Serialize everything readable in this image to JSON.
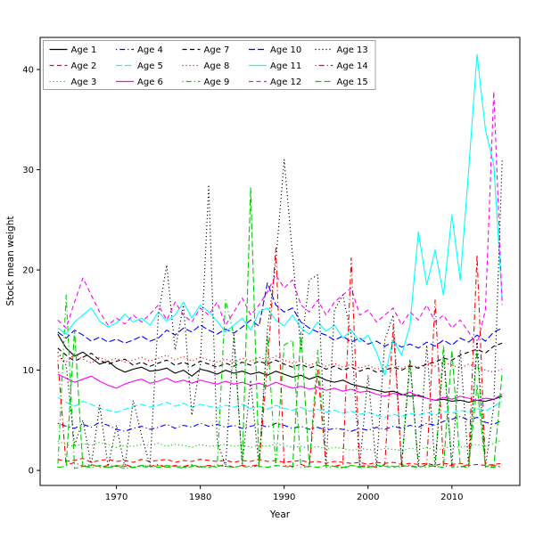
{
  "chart_data": {
    "type": "line",
    "title": "",
    "xlabel": "Year",
    "ylabel": "Stock mean weight",
    "xlim": [
      1960.9,
      2018.1
    ],
    "ylim": [
      -1.5,
      43.2
    ],
    "xticks": [
      1970,
      1980,
      1990,
      2000,
      2010
    ],
    "yticks": [
      0,
      10,
      20,
      30,
      40
    ],
    "grid": false,
    "legend_position": "top-left-inside",
    "legend_columns": 5,
    "legend_rows": 3,
    "frame_color": "#000000",
    "legend_border_color": "#a0a0a0",
    "x": [
      1963,
      1964,
      1965,
      1966,
      1967,
      1968,
      1969,
      1970,
      1971,
      1972,
      1973,
      1974,
      1975,
      1976,
      1977,
      1978,
      1979,
      1980,
      1981,
      1982,
      1983,
      1984,
      1985,
      1986,
      1987,
      1988,
      1989,
      1990,
      1991,
      1992,
      1993,
      1994,
      1995,
      1996,
      1997,
      1998,
      1999,
      2000,
      2001,
      2002,
      2003,
      2004,
      2005,
      2006,
      2007,
      2008,
      2009,
      2010,
      2011,
      2012,
      2013,
      2014,
      2015,
      2016
    ],
    "series": [
      {
        "name": "Age 1",
        "color": "#000000",
        "dash": "solid",
        "values": [
          13.6,
          12.2,
          11.4,
          11.8,
          11.2,
          10.6,
          10.9,
          10.2,
          9.8,
          10.1,
          10.3,
          9.9,
          10.0,
          10.2,
          9.7,
          10.0,
          9.4,
          10.1,
          9.9,
          9.6,
          10.0,
          9.7,
          9.9,
          9.6,
          9.8,
          9.5,
          9.9,
          9.6,
          9.3,
          9.5,
          9.1,
          9.4,
          9.0,
          8.8,
          9.0,
          8.6,
          8.4,
          8.2,
          8.0,
          7.8,
          7.9,
          7.6,
          7.4,
          7.5,
          7.2,
          7.0,
          7.1,
          6.9,
          7.0,
          6.8,
          7.0,
          6.9,
          7.1,
          7.4
        ]
      },
      {
        "name": "Age 2",
        "color": "#ff0000",
        "dash": "dashed",
        "values": [
          1.1,
          0.9,
          1.0,
          1.2,
          0.8,
          1.0,
          1.1,
          0.9,
          1.0,
          0.8,
          1.1,
          0.9,
          1.0,
          1.1,
          0.8,
          1.0,
          0.9,
          1.1,
          1.0,
          0.9,
          1.0,
          0.8,
          1.0,
          0.9,
          1.1,
          0.9,
          1.0,
          0.8,
          0.9,
          1.0,
          0.8,
          0.9,
          0.7,
          0.9,
          0.8,
          0.7,
          0.8,
          0.6,
          0.8,
          0.7,
          0.8,
          0.6,
          0.7,
          0.6,
          0.7,
          0.5,
          0.7,
          0.6,
          0.7,
          0.5,
          0.6,
          0.5,
          0.6,
          0.7
        ]
      },
      {
        "name": "Age 3",
        "color": "#00cd00",
        "dash": "dotted",
        "values": [
          2.9,
          2.6,
          2.4,
          2.7,
          2.5,
          2.8,
          2.6,
          2.3,
          2.5,
          2.4,
          2.6,
          2.5,
          2.7,
          2.4,
          2.6,
          2.5,
          2.3,
          2.6,
          2.4,
          2.5,
          2.6,
          2.4,
          2.5,
          2.3,
          2.5,
          2.4,
          2.6,
          2.5,
          2.3,
          2.4,
          2.2,
          2.4,
          2.1,
          2.3,
          2.2,
          2.0,
          2.2,
          2.1,
          2.0,
          2.2,
          2.1,
          2.0,
          2.2,
          2.1,
          2.3,
          2.0,
          2.2,
          2.4,
          2.3,
          2.5,
          2.6,
          2.4,
          2.7,
          3.0
        ]
      },
      {
        "name": "Age 4",
        "color": "#0000ff",
        "dash": "dotdash",
        "values": [
          4.7,
          4.4,
          4.2,
          4.6,
          4.3,
          4.8,
          4.5,
          4.1,
          3.9,
          4.2,
          4.4,
          4.1,
          4.3,
          4.6,
          4.2,
          4.5,
          4.3,
          4.7,
          4.4,
          4.6,
          4.3,
          4.5,
          4.2,
          4.4,
          4.6,
          4.3,
          4.7,
          4.5,
          4.2,
          4.4,
          4.1,
          4.3,
          4.0,
          4.2,
          4.1,
          3.9,
          4.2,
          4.0,
          4.3,
          4.1,
          4.4,
          4.2,
          4.5,
          4.3,
          4.7,
          4.5,
          4.9,
          5.1,
          5.4,
          5.0,
          5.3,
          4.8,
          4.6,
          5.0
        ]
      },
      {
        "name": "Age 5",
        "color": "#00ffff",
        "dash": "longdash",
        "values": [
          7.3,
          6.8,
          6.4,
          6.9,
          6.6,
          6.2,
          6.0,
          5.8,
          6.1,
          6.4,
          6.6,
          6.3,
          6.5,
          6.8,
          6.4,
          6.7,
          6.3,
          6.6,
          6.4,
          6.2,
          6.5,
          6.3,
          6.6,
          6.2,
          6.4,
          6.1,
          6.5,
          6.2,
          6.0,
          6.3,
          5.9,
          6.1,
          5.8,
          6.0,
          5.7,
          5.9,
          5.6,
          5.8,
          5.5,
          5.3,
          5.6,
          5.4,
          5.7,
          5.5,
          5.8,
          5.5,
          5.9,
          5.7,
          6.0,
          5.8,
          6.2,
          5.9,
          6.4,
          6.9
        ]
      },
      {
        "name": "Age 6",
        "color": "#ff00ff",
        "dash": "solid",
        "values": [
          9.6,
          9.2,
          8.8,
          9.1,
          9.4,
          8.9,
          8.5,
          8.2,
          8.6,
          8.9,
          9.1,
          8.7,
          8.9,
          9.2,
          8.8,
          9.0,
          8.7,
          9.0,
          8.8,
          8.6,
          8.9,
          8.6,
          8.8,
          8.5,
          8.7,
          8.4,
          8.8,
          8.5,
          8.2,
          8.4,
          8.1,
          8.3,
          8.0,
          8.2,
          7.9,
          8.1,
          7.8,
          7.9,
          7.6,
          7.4,
          7.7,
          7.5,
          7.8,
          7.4,
          7.2,
          7.0,
          7.3,
          7.1,
          7.4,
          7.2,
          7.0,
          7.2,
          7.1,
          7.6
        ]
      },
      {
        "name": "Age 7",
        "color": "#000000",
        "dash": "dashed",
        "values": [
          12.2,
          11.5,
          10.9,
          11.3,
          11.7,
          11.0,
          10.6,
          10.9,
          11.1,
          10.5,
          10.8,
          10.4,
          10.7,
          11.0,
          10.5,
          10.8,
          10.4,
          10.9,
          10.6,
          10.3,
          10.7,
          10.4,
          10.8,
          10.5,
          10.9,
          10.6,
          11.0,
          10.6,
          10.3,
          10.6,
          10.2,
          10.5,
          10.1,
          10.4,
          10.0,
          10.3,
          9.9,
          10.2,
          9.8,
          10.0,
          10.3,
          10.0,
          10.4,
          10.2,
          10.6,
          10.8,
          11.2,
          11.0,
          11.5,
          11.8,
          12.1,
          11.7,
          12.4,
          12.7
        ]
      },
      {
        "name": "Age 8",
        "color": "#ff0000",
        "dash": "dotted",
        "values": [
          11.4,
          10.8,
          11.6,
          11.1,
          10.7,
          11.3,
          10.9,
          11.2,
          10.8,
          11.0,
          11.3,
          10.9,
          11.2,
          11.5,
          11.0,
          11.4,
          10.9,
          11.3,
          11.0,
          10.8,
          11.1,
          10.8,
          11.2,
          10.9,
          11.3,
          11.0,
          11.4,
          11.0,
          10.7,
          10.9,
          10.5,
          10.8,
          10.4,
          10.7,
          10.3,
          10.6,
          10.2,
          10.5,
          10.1,
          10.3,
          10.6,
          10.2,
          10.5,
          10.3,
          10.7,
          10.4,
          10.8,
          10.5,
          10.2,
          10.6,
          10.3,
          10.0,
          9.8,
          10.1
        ]
      },
      {
        "name": "Age 9",
        "color": "#00cd00",
        "dash": "dotdash",
        "values": [
          0.3,
          17.5,
          0.2,
          0.4,
          0.3,
          0.5,
          0.3,
          0.4,
          0.2,
          0.3,
          0.4,
          0.3,
          0.5,
          0.3,
          0.4,
          0.2,
          0.4,
          0.3,
          0.5,
          0.3,
          17.0,
          13.5,
          0.4,
          0.3,
          0.5,
          13.5,
          0.4,
          12.5,
          13.0,
          0.3,
          0.4,
          12.0,
          0.3,
          0.4,
          0.2,
          0.5,
          0.3,
          0.4,
          0.3,
          0.5,
          0.4,
          0.3,
          11.0,
          0.4,
          0.3,
          0.5,
          12.5,
          0.3,
          0.4,
          0.3,
          12.0,
          0.4,
          0.3,
          0.5
        ]
      },
      {
        "name": "Age 10",
        "color": "#0000ff",
        "dash": "longdash",
        "values": [
          13.8,
          13.2,
          14.0,
          13.5,
          12.9,
          13.3,
          12.8,
          13.1,
          12.7,
          13.0,
          13.4,
          12.9,
          13.2,
          14.0,
          13.5,
          14.2,
          13.8,
          14.5,
          14.0,
          13.6,
          14.1,
          13.7,
          14.3,
          15.0,
          14.4,
          18.7,
          16.5,
          15.8,
          16.2,
          14.8,
          14.2,
          13.8,
          13.5,
          13.0,
          13.4,
          12.8,
          13.2,
          12.6,
          12.9,
          12.4,
          12.8,
          12.3,
          12.6,
          12.2,
          12.8,
          12.4,
          13.0,
          12.5,
          13.2,
          12.8,
          13.5,
          12.9,
          13.8,
          14.2
        ]
      },
      {
        "name": "Age 11",
        "color": "#00ffff",
        "dash": "solid",
        "values": [
          14.2,
          13.6,
          14.8,
          15.5,
          16.2,
          14.9,
          14.3,
          14.7,
          15.6,
          14.8,
          15.2,
          14.5,
          15.8,
          14.9,
          15.5,
          16.8,
          15.2,
          16.5,
          15.8,
          14.9,
          13.8,
          14.5,
          15.2,
          14.0,
          15.8,
          16.2,
          15.0,
          14.4,
          15.5,
          14.2,
          13.6,
          14.8,
          13.9,
          14.5,
          13.2,
          14.0,
          12.8,
          13.5,
          11.8,
          9.5,
          13.0,
          11.5,
          14.5,
          23.8,
          18.5,
          22.0,
          17.5,
          25.5,
          19.0,
          30.0,
          41.5,
          34.0,
          30.5,
          17.0
        ]
      },
      {
        "name": "Age 12",
        "color": "#ff00ff",
        "dash": "dashed",
        "values": [
          15.0,
          14.2,
          16.8,
          19.2,
          17.5,
          15.8,
          14.5,
          15.2,
          14.6,
          15.5,
          14.8,
          15.6,
          16.5,
          15.0,
          16.8,
          15.5,
          14.8,
          16.2,
          15.5,
          16.8,
          14.5,
          15.8,
          17.2,
          15.5,
          16.5,
          17.8,
          19.5,
          18.2,
          19.0,
          16.5,
          15.8,
          17.0,
          15.5,
          16.8,
          17.5,
          18.2,
          15.5,
          16.0,
          14.8,
          15.5,
          16.2,
          14.5,
          15.8,
          15.0,
          16.5,
          14.8,
          15.5,
          14.2,
          15.0,
          13.8,
          12.5,
          16.0,
          37.8,
          16.5
        ]
      },
      {
        "name": "Age 13",
        "color": "#000000",
        "dash": "dotted",
        "values": [
          11.8,
          10.5,
          2.5,
          5.0,
          0.5,
          6.5,
          0.4,
          4.5,
          0.3,
          7.0,
          3.5,
          0.5,
          15.5,
          20.5,
          12.0,
          16.5,
          5.5,
          10.5,
          28.5,
          3.0,
          0.4,
          13.5,
          0.5,
          9.0,
          0.3,
          14.0,
          20.8,
          31.0,
          21.5,
          12.0,
          19.0,
          19.5,
          0.5,
          16.0,
          17.5,
          13.5,
          0.4,
          9.5,
          0.3,
          13.0,
          15.5,
          0.5,
          11.0,
          0.4,
          12.5,
          0.3,
          11.5,
          0.5,
          12.0,
          0.4,
          13.0,
          0.3,
          6.5,
          31.0
        ]
      },
      {
        "name": "Age 14",
        "color": "#ff0000",
        "dash": "dotdash",
        "values": [
          11.0,
          0.5,
          0.8,
          0.4,
          0.6,
          0.3,
          0.5,
          0.4,
          0.6,
          0.3,
          0.5,
          0.4,
          0.6,
          0.3,
          0.5,
          0.4,
          0.6,
          0.3,
          0.5,
          0.4,
          0.6,
          0.3,
          0.5,
          0.4,
          0.6,
          10.5,
          22.2,
          0.5,
          0.4,
          0.6,
          0.3,
          10.0,
          0.5,
          0.4,
          0.6,
          21.2,
          0.4,
          0.5,
          0.3,
          0.6,
          14.5,
          0.4,
          0.5,
          0.3,
          0.6,
          17.0,
          0.4,
          0.5,
          0.3,
          0.6,
          21.5,
          0.4,
          0.5,
          0.3
        ]
      },
      {
        "name": "Age 15",
        "color": "#00cd00",
        "dash": "longdash",
        "values": [
          0.3,
          0.4,
          14.0,
          0.3,
          0.5,
          0.4,
          0.3,
          0.5,
          0.4,
          0.3,
          0.5,
          0.4,
          0.3,
          0.5,
          0.4,
          0.3,
          0.5,
          0.4,
          0.3,
          0.5,
          0.4,
          0.3,
          0.5,
          28.2,
          0.4,
          0.3,
          0.5,
          0.4,
          0.3,
          13.8,
          0.4,
          0.3,
          0.5,
          0.4,
          0.3,
          0.5,
          0.4,
          0.3,
          0.5,
          0.4,
          0.3,
          0.5,
          0.4,
          0.3,
          0.5,
          0.4,
          0.3,
          12.0,
          0.4,
          0.3,
          8.5,
          0.4,
          0.3,
          9.8
        ]
      }
    ]
  }
}
